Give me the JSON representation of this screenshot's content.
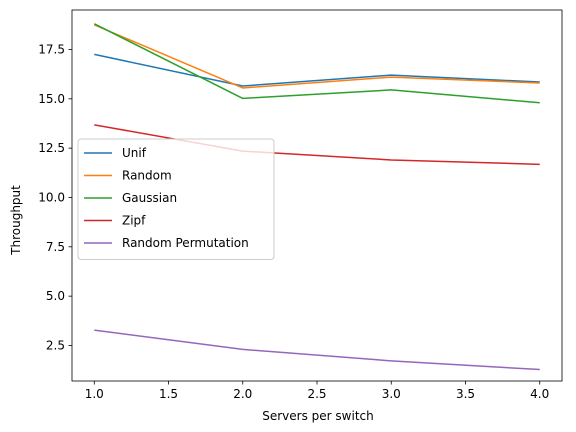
{
  "chart_data": {
    "type": "line",
    "title": "",
    "xlabel": "Servers per switch",
    "ylabel": "Throughput",
    "x": [
      1,
      2,
      3,
      4
    ],
    "xlim": [
      0.85,
      4.15
    ],
    "ylim": [
      0.7,
      19.5
    ],
    "xticks": [
      1.0,
      1.5,
      2.0,
      2.5,
      3.0,
      3.5,
      4.0
    ],
    "xtick_labels": [
      "1.0",
      "1.5",
      "2.0",
      "2.5",
      "3.0",
      "3.5",
      "4.0"
    ],
    "yticks": [
      2.5,
      5.0,
      7.5,
      10.0,
      12.5,
      15.0,
      17.5
    ],
    "ytick_labels": [
      "2.5",
      "5.0",
      "7.5",
      "10.0",
      "12.5",
      "15.0",
      "17.5"
    ],
    "grid": false,
    "legend_position": "center-left",
    "series": [
      {
        "name": "Unif",
        "color": "#1f77b4",
        "values": [
          17.25,
          15.65,
          16.2,
          15.85
        ]
      },
      {
        "name": "Random",
        "color": "#ff7f0e",
        "values": [
          18.75,
          15.55,
          16.1,
          15.8
        ]
      },
      {
        "name": "Gaussian",
        "color": "#2ca02c",
        "values": [
          18.8,
          15.02,
          15.45,
          14.8
        ]
      },
      {
        "name": "Zipf",
        "color": "#d62728",
        "values": [
          13.68,
          12.35,
          11.9,
          11.68
        ]
      },
      {
        "name": "Random Permutation",
        "color": "#9467bd",
        "values": [
          3.28,
          2.3,
          1.72,
          1.28
        ]
      }
    ]
  }
}
